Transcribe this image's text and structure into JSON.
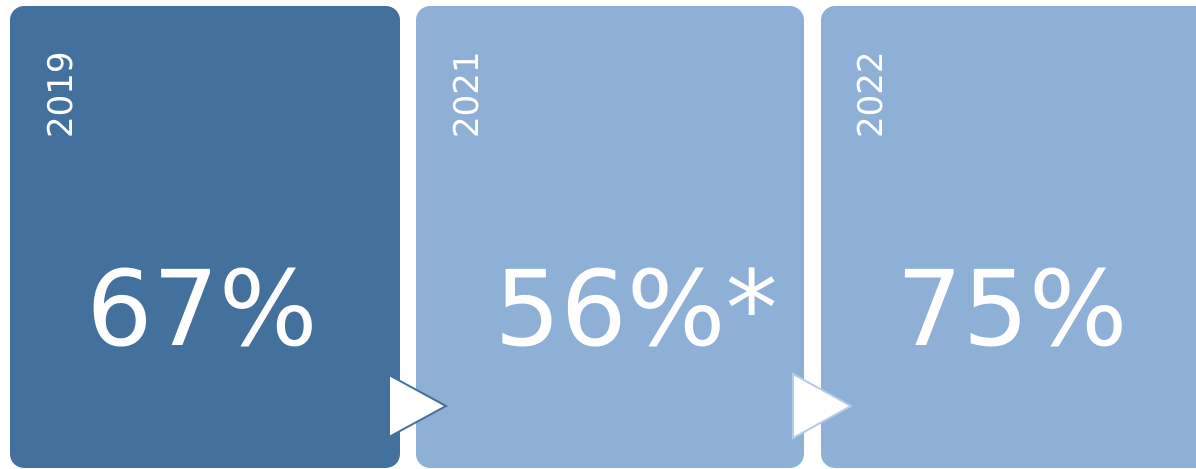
{
  "panels": [
    {
      "year": "2019",
      "value": "67%"
    },
    {
      "year": "2021",
      "value": "56%*"
    },
    {
      "year": "2022",
      "value": "75%"
    }
  ]
}
